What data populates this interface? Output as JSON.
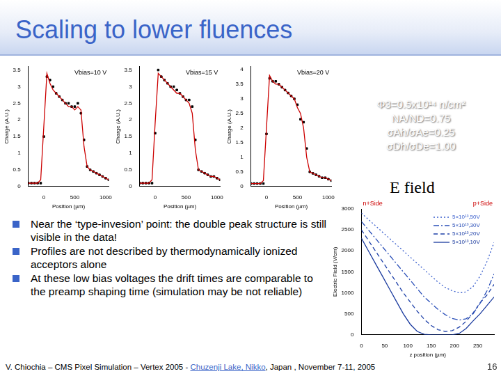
{
  "title": "Scaling to lower fluences",
  "parameters": [
    "Φ3=0.5x10¹⁴ n/cm²",
    "NA/ND=0.75",
    "σAh/σAe=0.25",
    "σDh/σDe=1.00"
  ],
  "bullets": [
    "Near the ‘type-invesion’ point: the double peak structure is still visible in the data!",
    "Profiles are not described by thermodynamically ionized acceptors alone",
    "At these low bias voltages the drift times are comparable to the preamp shaping time (simulation may be not reliable)"
  ],
  "footer": {
    "before": "V. Chiochia – CMS Pixel Simulation – Vertex 2005 - ",
    "link": "Chuzenji Lake, Nikko",
    "after": ", Japan , November 7-11, 2005",
    "page": "16"
  },
  "chart_data": [
    {
      "type": "scatter",
      "annotation": "Vbias=10 V",
      "x_label": "Position (µm)",
      "y_label": "Charge (A.U.)",
      "xlim": [
        -250,
        1050
      ],
      "xticks": [
        0,
        500,
        1000
      ],
      "ylim": [
        0,
        3.6
      ],
      "yticks": [
        0,
        0.5,
        1,
        1.5,
        2,
        2.5,
        3,
        3.5
      ],
      "x": [
        -250,
        -200,
        -150,
        -100,
        -50,
        0,
        50,
        100,
        150,
        200,
        250,
        300,
        350,
        400,
        450,
        500,
        550,
        600,
        650,
        700,
        750,
        800,
        850,
        900,
        950,
        1000,
        1050
      ],
      "series": [
        {
          "type": "scatter",
          "marker": "square",
          "color": "#000000",
          "values": [
            0.1,
            0.1,
            0.1,
            0.1,
            0.1,
            1.5,
            3.3,
            3.2,
            3.0,
            2.8,
            2.7,
            2.6,
            2.5,
            2.5,
            2.4,
            2.4,
            2.5,
            2.2,
            1.4,
            0.6,
            0.5,
            0.45,
            0.4,
            0.35,
            0.3,
            0.25,
            0.2
          ]
        },
        {
          "type": "line",
          "line_style": "solid",
          "color": "#cc0000",
          "values": [
            0.1,
            0.1,
            0.1,
            0.1,
            0.2,
            1.8,
            3.4,
            3.1,
            2.9,
            2.8,
            2.7,
            2.6,
            2.5,
            2.4,
            2.4,
            2.3,
            2.4,
            2.3,
            1.2,
            0.6,
            0.5,
            0.45,
            0.4,
            0.35,
            0.3,
            0.25,
            0.2
          ]
        }
      ]
    },
    {
      "type": "scatter",
      "annotation": "Vbias=15 V",
      "x_label": "Position (µm)",
      "y_label": "Charge (A.U.)",
      "xlim": [
        -250,
        1050
      ],
      "xticks": [
        0,
        500,
        1000
      ],
      "ylim": [
        0,
        3.6
      ],
      "yticks": [
        0,
        0.5,
        1,
        1.5,
        2,
        2.5,
        3,
        3.5
      ],
      "x": [
        -250,
        -200,
        -150,
        -100,
        -50,
        0,
        50,
        100,
        150,
        200,
        250,
        300,
        350,
        400,
        450,
        500,
        550,
        600,
        650,
        700,
        750,
        800,
        850,
        900,
        950,
        1000,
        1050
      ],
      "series": [
        {
          "type": "scatter",
          "marker": "square",
          "color": "#000000",
          "values": [
            0.1,
            0.1,
            0.1,
            0.1,
            0.1,
            1.6,
            3.5,
            3.3,
            3.2,
            3.1,
            3.0,
            3.0,
            2.9,
            2.8,
            2.7,
            2.6,
            2.6,
            2.4,
            1.4,
            0.5,
            0.45,
            0.4,
            0.35,
            0.3,
            0.3,
            0.25,
            0.2
          ]
        },
        {
          "type": "line",
          "line_style": "solid",
          "color": "#cc0000",
          "values": [
            0.1,
            0.1,
            0.1,
            0.1,
            0.2,
            1.9,
            3.4,
            3.3,
            3.2,
            3.1,
            3.0,
            2.9,
            2.8,
            2.8,
            2.7,
            2.6,
            2.5,
            2.2,
            1.1,
            0.5,
            0.45,
            0.4,
            0.35,
            0.3,
            0.3,
            0.25,
            0.2
          ]
        }
      ]
    },
    {
      "type": "scatter",
      "annotation": "Vbias=20 V",
      "x_label": "Position (µm)",
      "y_label": "Charge (A.U.)",
      "xlim": [
        -250,
        1050
      ],
      "xticks": [
        0,
        500,
        1000
      ],
      "ylim": [
        0,
        4.1
      ],
      "yticks": [
        0,
        0.5,
        1,
        1.5,
        2,
        2.5,
        3,
        3.5,
        4
      ],
      "x": [
        -250,
        -200,
        -150,
        -100,
        -50,
        0,
        50,
        100,
        150,
        200,
        250,
        300,
        350,
        400,
        450,
        500,
        550,
        600,
        650,
        700,
        750,
        800,
        850,
        900,
        950,
        1000,
        1050
      ],
      "series": [
        {
          "type": "scatter",
          "marker": "square",
          "color": "#000000",
          "values": [
            0.1,
            0.1,
            0.1,
            0.1,
            0.1,
            1.8,
            3.7,
            3.6,
            3.6,
            3.5,
            3.4,
            3.3,
            3.2,
            3.1,
            3.0,
            2.8,
            2.3,
            2.2,
            1.3,
            0.5,
            0.45,
            0.4,
            0.35,
            0.3,
            0.3,
            0.25,
            0.2
          ]
        },
        {
          "type": "line",
          "line_style": "solid",
          "color": "#cc0000",
          "values": [
            0.1,
            0.1,
            0.1,
            0.1,
            0.2,
            2.0,
            3.8,
            3.6,
            3.5,
            3.5,
            3.4,
            3.3,
            3.2,
            3.1,
            3.0,
            2.7,
            2.5,
            2.0,
            1.0,
            0.5,
            0.45,
            0.4,
            0.35,
            0.3,
            0.3,
            0.25,
            0.2
          ]
        }
      ]
    },
    {
      "type": "line",
      "title": "E field",
      "annotations": [
        "n+Side",
        "p+Side"
      ],
      "x_label": "z position (µm)",
      "y_label": "Electric Field (V/cm)",
      "xlim": [
        0,
        285
      ],
      "xticks": [
        0,
        50,
        100,
        150,
        200,
        250
      ],
      "ylim": [
        0,
        3000
      ],
      "yticks": [
        0,
        500,
        1000,
        1500,
        2000,
        2500,
        3000
      ],
      "legend": "upper right",
      "x": [
        0,
        15,
        30,
        45,
        60,
        75,
        90,
        105,
        120,
        135,
        150,
        165,
        180,
        195,
        210,
        225,
        240,
        255,
        270,
        285
      ],
      "series": [
        {
          "name": "5×10¹³,50V",
          "color": "#3a5fcd",
          "line_style": "dotted",
          "values": [
            2900,
            2750,
            2600,
            2450,
            2300,
            2150,
            2000,
            1850,
            1700,
            1550,
            1400,
            1250,
            1130,
            1050,
            1000,
            1020,
            1150,
            1400,
            1750,
            2200
          ]
        },
        {
          "name": "5×10¹³,30V",
          "color": "#2a4fb8",
          "line_style": "dashdot",
          "values": [
            2700,
            2500,
            2300,
            2100,
            1900,
            1700,
            1500,
            1300,
            1100,
            900,
            750,
            600,
            480,
            390,
            350,
            380,
            500,
            750,
            1050,
            1450
          ]
        },
        {
          "name": "5×10¹³,20V",
          "color": "#1e40a8",
          "line_style": "dashed",
          "values": [
            2500,
            2250,
            2000,
            1750,
            1500,
            1250,
            1000,
            780,
            560,
            370,
            220,
            120,
            80,
            100,
            180,
            320,
            520,
            760,
            950,
            1200
          ]
        },
        {
          "name": "5×10¹³,10V",
          "color": "#1a3a9e",
          "line_style": "solid",
          "values": [
            2300,
            2000,
            1700,
            1400,
            1100,
            800,
            500,
            250,
            80,
            10,
            0,
            0,
            0,
            0,
            30,
            150,
            330,
            500,
            700,
            900
          ]
        }
      ]
    }
  ]
}
